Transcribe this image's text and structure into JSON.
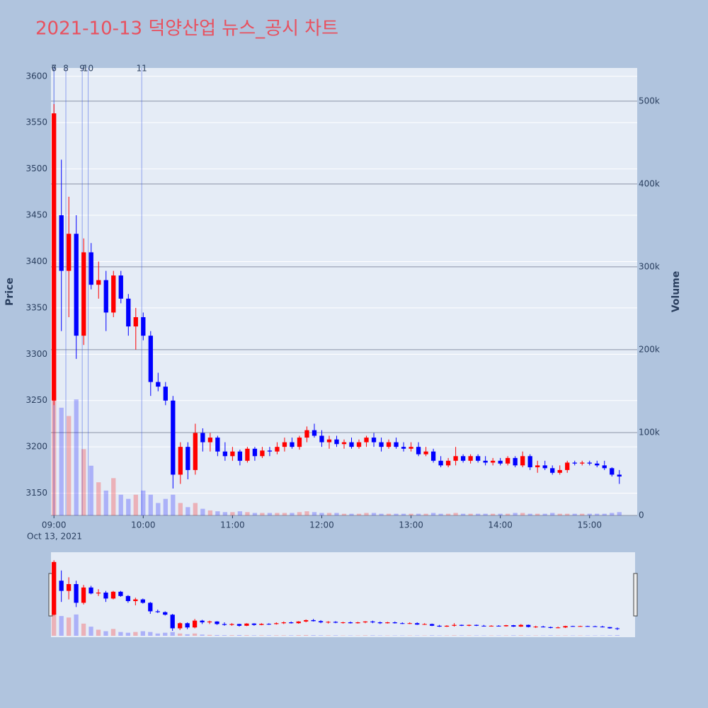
{
  "chart_data": {
    "type": "candlestick",
    "title": "2021-10-13 덕양산업 뉴스_공시 차트",
    "y_title": "Price",
    "y2_title": "Volume",
    "x_date_label": "Oct 13, 2021",
    "increasing_color": "#ff0000",
    "decreasing_color": "#0000ff",
    "xlim": [
      "08:58",
      "15:32"
    ],
    "xticks": [
      "09:00",
      "10:00",
      "11:00",
      "12:00",
      "13:00",
      "14:00",
      "15:00"
    ],
    "ylim": [
      3126,
      3609
    ],
    "yticks": [
      3150,
      3200,
      3250,
      3300,
      3350,
      3400,
      3450,
      3500,
      3550,
      3600
    ],
    "y2lim": [
      0,
      540000
    ],
    "y2ticks": [
      0,
      {
        "value": 100000,
        "label": "100k"
      },
      {
        "value": 200000,
        "label": "200k"
      },
      {
        "value": 300000,
        "label": "300k"
      },
      {
        "value": 400000,
        "label": "400k"
      },
      {
        "value": 500000,
        "label": "500k"
      }
    ],
    "events": [
      {
        "x": "09:00",
        "label": "7"
      },
      {
        "x": "09:00",
        "label": "6"
      },
      {
        "x": "09:08",
        "label": "8"
      },
      {
        "x": "09:19",
        "label": "9"
      },
      {
        "x": "09:23",
        "label": "10"
      },
      {
        "x": "09:59",
        "label": "11"
      }
    ],
    "x": [
      "09:00",
      "09:05",
      "09:10",
      "09:15",
      "09:20",
      "09:25",
      "09:30",
      "09:35",
      "09:40",
      "09:45",
      "09:50",
      "09:55",
      "10:00",
      "10:05",
      "10:10",
      "10:15",
      "10:20",
      "10:25",
      "10:30",
      "10:35",
      "10:40",
      "10:45",
      "10:50",
      "10:55",
      "11:00",
      "11:05",
      "11:10",
      "11:15",
      "11:20",
      "11:25",
      "11:30",
      "11:35",
      "11:40",
      "11:45",
      "11:50",
      "11:55",
      "12:00",
      "12:05",
      "12:10",
      "12:15",
      "12:20",
      "12:25",
      "12:30",
      "12:35",
      "12:40",
      "12:45",
      "12:50",
      "12:55",
      "13:00",
      "13:05",
      "13:10",
      "13:15",
      "13:20",
      "13:25",
      "13:30",
      "13:35",
      "13:40",
      "13:45",
      "13:50",
      "13:55",
      "14:00",
      "14:05",
      "14:10",
      "14:15",
      "14:20",
      "14:25",
      "14:30",
      "14:35",
      "14:40",
      "14:45",
      "14:50",
      "14:55",
      "15:00",
      "15:05",
      "15:10",
      "15:15",
      "15:20"
    ],
    "open": [
      3250,
      3450,
      3390,
      3430,
      3320,
      3410,
      3375,
      3380,
      3345,
      3385,
      3360,
      3330,
      3340,
      3320,
      3270,
      3265,
      3250,
      3170,
      3200,
      3175,
      3215,
      3205,
      3210,
      3195,
      3190,
      3195,
      3185,
      3198,
      3190,
      3196,
      3195,
      3200,
      3205,
      3200,
      3210,
      3218,
      3212,
      3205,
      3208,
      3203,
      3205,
      3200,
      3205,
      3210,
      3205,
      3200,
      3205,
      3200,
      3198,
      3200,
      3192,
      3195,
      3185,
      3180,
      3185,
      3190,
      3185,
      3190,
      3185,
      3183,
      3185,
      3182,
      3188,
      3180,
      3190,
      3178,
      3180,
      3177,
      3172,
      3175,
      3183,
      3182,
      3183,
      3182,
      3180,
      3177,
      3170
    ],
    "high": [
      3570,
      3510,
      3470,
      3450,
      3425,
      3420,
      3400,
      3390,
      3390,
      3390,
      3365,
      3350,
      3345,
      3325,
      3280,
      3270,
      3255,
      3205,
      3205,
      3225,
      3220,
      3215,
      3212,
      3205,
      3200,
      3197,
      3200,
      3200,
      3200,
      3200,
      3205,
      3210,
      3210,
      3212,
      3222,
      3225,
      3218,
      3212,
      3212,
      3208,
      3210,
      3208,
      3212,
      3215,
      3210,
      3208,
      3210,
      3205,
      3205,
      3205,
      3200,
      3198,
      3190,
      3188,
      3200,
      3192,
      3192,
      3192,
      3190,
      3188,
      3188,
      3190,
      3190,
      3195,
      3192,
      3185,
      3185,
      3180,
      3180,
      3185,
      3185,
      3185,
      3185,
      3185,
      3185,
      3178,
      3175
    ],
    "low": [
      3245,
      3325,
      3340,
      3295,
      3310,
      3370,
      3360,
      3325,
      3340,
      3355,
      3320,
      3305,
      3315,
      3255,
      3260,
      3245,
      3155,
      3160,
      3165,
      3170,
      3195,
      3195,
      3190,
      3185,
      3185,
      3180,
      3183,
      3185,
      3188,
      3190,
      3192,
      3195,
      3198,
      3197,
      3205,
      3210,
      3200,
      3198,
      3200,
      3198,
      3198,
      3198,
      3200,
      3200,
      3195,
      3198,
      3198,
      3195,
      3195,
      3190,
      3190,
      3183,
      3178,
      3178,
      3180,
      3183,
      3182,
      3183,
      3180,
      3180,
      3180,
      3180,
      3178,
      3178,
      3175,
      3172,
      3175,
      3170,
      3170,
      3172,
      3180,
      3180,
      3180,
      3178,
      3175,
      3168,
      3160
    ],
    "close": [
      3560,
      3390,
      3430,
      3320,
      3410,
      3375,
      3380,
      3345,
      3385,
      3360,
      3330,
      3340,
      3320,
      3270,
      3265,
      3250,
      3170,
      3200,
      3175,
      3215,
      3205,
      3210,
      3195,
      3190,
      3195,
      3185,
      3198,
      3190,
      3196,
      3195,
      3200,
      3205,
      3200,
      3210,
      3218,
      3212,
      3205,
      3208,
      3203,
      3205,
      3200,
      3205,
      3210,
      3205,
      3200,
      3205,
      3200,
      3198,
      3200,
      3192,
      3195,
      3185,
      3180,
      3185,
      3190,
      3185,
      3190,
      3185,
      3183,
      3185,
      3182,
      3188,
      3180,
      3190,
      3178,
      3180,
      3177,
      3172,
      3175,
      3183,
      3182,
      3183,
      3182,
      3180,
      3177,
      3170,
      3168
    ],
    "volume": [
      150000,
      130000,
      120000,
      140000,
      80000,
      60000,
      40000,
      30000,
      45000,
      25000,
      20000,
      25000,
      30000,
      25000,
      15000,
      20000,
      25000,
      15000,
      10000,
      15000,
      8000,
      6000,
      5000,
      4000,
      4000,
      5000,
      4000,
      3000,
      3000,
      3000,
      3000,
      3000,
      3000,
      4000,
      5000,
      4000,
      3000,
      3000,
      3000,
      2000,
      2000,
      2000,
      3000,
      3000,
      2000,
      2000,
      2000,
      2000,
      2000,
      2000,
      2000,
      3000,
      2000,
      2000,
      3000,
      2000,
      2000,
      2000,
      2000,
      2000,
      2000,
      2000,
      3000,
      3000,
      2000,
      2000,
      2000,
      3000,
      2000,
      2000,
      2000,
      2000,
      2000,
      2000,
      2000,
      3000,
      4000
    ]
  }
}
